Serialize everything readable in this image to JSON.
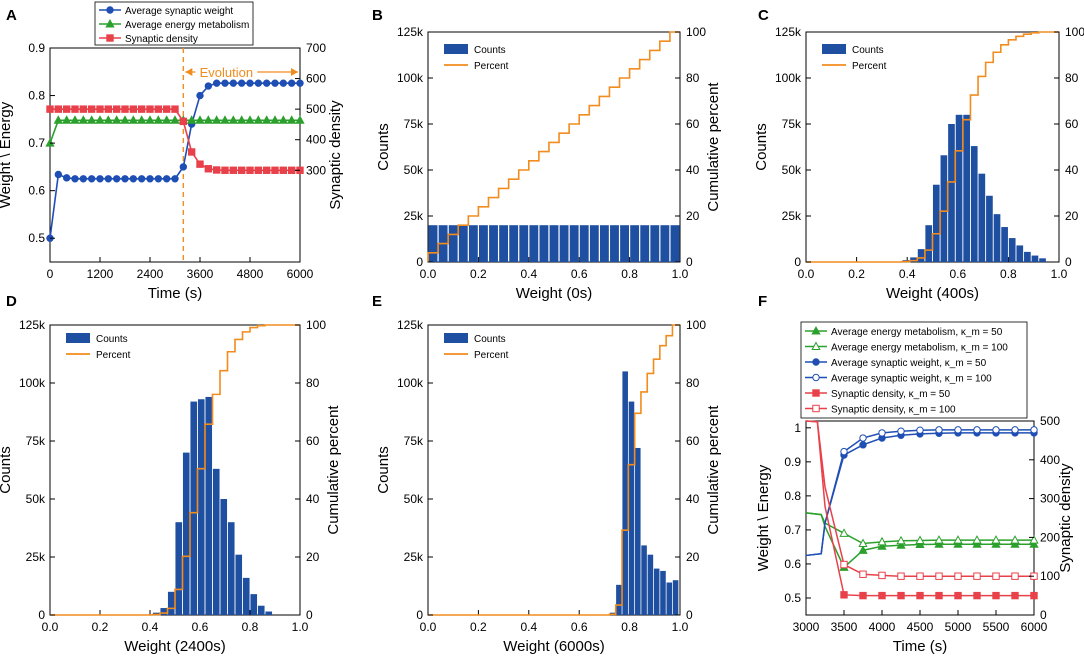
{
  "chart_data": [
    {
      "panel": "A",
      "type": "line",
      "xlabel": "Time (s)",
      "ylabel": "Weight \\ Energy",
      "ylabel_right": "Synaptic density",
      "xlim": [
        0,
        6000
      ],
      "ylim": [
        0.45,
        0.9
      ],
      "ylim_right": [
        0,
        700
      ],
      "x_ticks": [
        0,
        1200,
        2400,
        3600,
        4800,
        6000
      ],
      "y_ticks": [
        0.5,
        0.6,
        0.7,
        0.8,
        0.9
      ],
      "y_right_ticks": [
        300,
        400,
        500,
        600,
        700
      ],
      "annotation": "Evolution",
      "evolution_start": 3200,
      "series": [
        {
          "name": "Average synaptic weight",
          "color": "#1f4fb4",
          "marker": "circle",
          "axis": "left",
          "x": [
            0,
            200,
            400,
            600,
            800,
            1000,
            1200,
            1400,
            1600,
            1800,
            2000,
            2200,
            2400,
            2600,
            2800,
            3000,
            3200,
            3400,
            3600,
            3800,
            4000,
            4200,
            4400,
            4600,
            4800,
            5000,
            5200,
            5400,
            5600,
            5800,
            6000
          ],
          "y": [
            0.5,
            0.634,
            0.627,
            0.625,
            0.625,
            0.625,
            0.625,
            0.625,
            0.625,
            0.625,
            0.625,
            0.625,
            0.625,
            0.625,
            0.625,
            0.625,
            0.65,
            0.74,
            0.8,
            0.82,
            0.826,
            0.826,
            0.826,
            0.826,
            0.826,
            0.826,
            0.826,
            0.826,
            0.826,
            0.826,
            0.826
          ]
        },
        {
          "name": "Average energy metabolism",
          "color": "#2ca02c",
          "marker": "triangle",
          "axis": "left",
          "x": [
            0,
            200,
            400,
            600,
            800,
            1000,
            1200,
            1400,
            1600,
            1800,
            2000,
            2200,
            2400,
            2600,
            2800,
            3000,
            3200,
            3400,
            3600,
            3800,
            4000,
            4200,
            4400,
            4600,
            4800,
            5000,
            5200,
            5400,
            5600,
            5800,
            6000
          ],
          "y": [
            0.7,
            0.748,
            0.748,
            0.748,
            0.748,
            0.748,
            0.748,
            0.748,
            0.748,
            0.748,
            0.748,
            0.748,
            0.748,
            0.748,
            0.748,
            0.748,
            0.748,
            0.748,
            0.748,
            0.748,
            0.748,
            0.748,
            0.748,
            0.748,
            0.748,
            0.748,
            0.748,
            0.748,
            0.748,
            0.748,
            0.748
          ]
        },
        {
          "name": "Synaptic density",
          "color": "#e8414a",
          "marker": "square",
          "axis": "right",
          "x": [
            0,
            200,
            400,
            600,
            800,
            1000,
            1200,
            1400,
            1600,
            1800,
            2000,
            2200,
            2400,
            2600,
            2800,
            3000,
            3200,
            3400,
            3600,
            3800,
            4000,
            4200,
            4400,
            4600,
            4800,
            5000,
            5200,
            5400,
            5600,
            5800,
            6000
          ],
          "y": [
            500,
            500,
            500,
            500,
            500,
            500,
            500,
            500,
            500,
            500,
            500,
            500,
            500,
            500,
            500,
            500,
            460,
            360,
            320,
            305,
            301,
            300,
            300,
            300,
            300,
            300,
            300,
            300,
            300,
            300,
            300
          ]
        }
      ]
    },
    {
      "panel": "B",
      "type": "bar",
      "xlabel": "Weight (0s)",
      "ylabel": "Counts",
      "ylabel_right": "Cumulative percent",
      "xlim": [
        0,
        1.0
      ],
      "ylim": [
        0,
        125000
      ],
      "ylim_right": [
        0,
        100
      ],
      "x_ticks": [
        "0.0",
        "0.2",
        "0.4",
        "0.6",
        "0.8",
        "1.0"
      ],
      "y_ticks": [
        "0",
        "25k",
        "50k",
        "75k",
        "100k",
        "125k"
      ],
      "y_right_ticks": [
        "0",
        "20",
        "40",
        "60",
        "80",
        "100"
      ],
      "legend": [
        "Counts",
        "Percent"
      ],
      "bar_width": 0.04,
      "bins": [
        0.02,
        0.06,
        0.1,
        0.14,
        0.18,
        0.22,
        0.26,
        0.3,
        0.34,
        0.38,
        0.42,
        0.46,
        0.5,
        0.54,
        0.58,
        0.62,
        0.66,
        0.7,
        0.74,
        0.78,
        0.82,
        0.86,
        0.9,
        0.94,
        0.98
      ],
      "counts": [
        20000,
        20000,
        20000,
        20000,
        20000,
        20000,
        20000,
        20000,
        20000,
        20000,
        20000,
        20000,
        20000,
        20000,
        20000,
        20000,
        20000,
        20000,
        20000,
        20000,
        20000,
        20000,
        20000,
        20000,
        20000
      ]
    },
    {
      "panel": "C",
      "type": "bar",
      "xlabel": "Weight (400s)",
      "ylabel": "Counts",
      "ylabel_right": "Cumulative percent",
      "xlim": [
        0,
        1.0
      ],
      "ylim": [
        0,
        125000
      ],
      "ylim_right": [
        0,
        100
      ],
      "x_ticks": [
        "0.0",
        "0.2",
        "0.4",
        "0.6",
        "0.8",
        "1.0"
      ],
      "y_ticks": [
        "0",
        "25k",
        "50k",
        "75k",
        "100k",
        "125k"
      ],
      "y_right_ticks": [
        "0",
        "20",
        "40",
        "60",
        "80",
        "100"
      ],
      "legend": [
        "Counts",
        "Percent"
      ],
      "bar_width": 0.03,
      "bins": [
        0.395,
        0.425,
        0.455,
        0.485,
        0.515,
        0.545,
        0.575,
        0.605,
        0.635,
        0.665,
        0.695,
        0.725,
        0.755,
        0.785,
        0.815,
        0.845,
        0.875,
        0.905,
        0.935
      ],
      "counts": [
        1000,
        2500,
        7000,
        20000,
        42000,
        58000,
        75000,
        80000,
        80000,
        63000,
        48000,
        36000,
        26000,
        19000,
        13000,
        9000,
        5500,
        3500,
        2000
      ]
    },
    {
      "panel": "D",
      "type": "bar",
      "xlabel": "Weight (2400s)",
      "ylabel": "Counts",
      "ylabel_right": "Cumulative percent",
      "xlim": [
        0,
        1.0
      ],
      "ylim": [
        0,
        125000
      ],
      "ylim_right": [
        0,
        100
      ],
      "x_ticks": [
        "0.0",
        "0.2",
        "0.4",
        "0.6",
        "0.8",
        "1.0"
      ],
      "y_ticks": [
        "0",
        "25k",
        "50k",
        "75k",
        "100k",
        "125k"
      ],
      "y_right_ticks": [
        "0",
        "20",
        "40",
        "60",
        "80",
        "100"
      ],
      "legend": [
        "Counts",
        "Percent"
      ],
      "bar_width": 0.03,
      "bins": [
        0.425,
        0.455,
        0.485,
        0.515,
        0.545,
        0.575,
        0.605,
        0.635,
        0.665,
        0.695,
        0.725,
        0.755,
        0.785,
        0.815,
        0.845,
        0.875
      ],
      "counts": [
        1000,
        3000,
        10000,
        40000,
        70000,
        92000,
        93000,
        94000,
        63000,
        50000,
        40000,
        26000,
        16000,
        9000,
        4000,
        1500
      ]
    },
    {
      "panel": "E",
      "type": "bar",
      "xlabel": "Weight (6000s)",
      "ylabel": "Counts",
      "ylabel_right": "Cumulative percent",
      "xlim": [
        0,
        1.0
      ],
      "ylim": [
        0,
        125000
      ],
      "ylim_right": [
        0,
        100
      ],
      "x_ticks": [
        "0.0",
        "0.2",
        "0.4",
        "0.6",
        "0.8",
        "1.0"
      ],
      "y_ticks": [
        "0",
        "25k",
        "50k",
        "75k",
        "100k",
        "125k"
      ],
      "y_right_ticks": [
        "0",
        "20",
        "40",
        "60",
        "80",
        "100"
      ],
      "legend": [
        "Counts",
        "Percent"
      ],
      "bar_width": 0.025,
      "bins": [
        0.7325,
        0.7575,
        0.7825,
        0.8075,
        0.8325,
        0.8575,
        0.8825,
        0.9075,
        0.9325,
        0.9575,
        0.9825
      ],
      "counts": [
        1000,
        13000,
        105000,
        92000,
        72000,
        30000,
        26000,
        20000,
        19000,
        14000,
        15000
      ]
    },
    {
      "panel": "F",
      "type": "line",
      "xlabel": "Time (s)",
      "ylabel": "Weight \\ Energy",
      "ylabel_right": "Synaptic density",
      "xlim": [
        3000,
        6000
      ],
      "ylim": [
        0.45,
        1.02
      ],
      "ylim_right": [
        0,
        500
      ],
      "x_ticks": [
        3000,
        3500,
        4000,
        4500,
        5000,
        5500,
        6000
      ],
      "y_ticks": [
        0.5,
        0.6,
        0.7,
        0.8,
        0.9,
        1.0
      ],
      "y_right_ticks": [
        0,
        100,
        200,
        300,
        400,
        500
      ],
      "series": [
        {
          "name": "Average energy metabolism, κ_m = 50",
          "color": "#2ca02c",
          "marker": "triangle",
          "filled": true,
          "axis": "left",
          "x": [
            3000,
            3200,
            3250,
            3500,
            3750,
            4000,
            4250,
            4500,
            4750,
            5000,
            5250,
            5500,
            5750,
            6000
          ],
          "y": [
            0.75,
            0.745,
            0.71,
            0.59,
            0.64,
            0.652,
            0.655,
            0.657,
            0.658,
            0.658,
            0.658,
            0.658,
            0.658,
            0.658
          ]
        },
        {
          "name": "Average energy metabolism, κ_m = 100",
          "color": "#2ca02c",
          "marker": "triangle",
          "filled": false,
          "axis": "left",
          "x": [
            3000,
            3200,
            3250,
            3500,
            3750,
            4000,
            4250,
            4500,
            4750,
            5000,
            5250,
            5500,
            5750,
            6000
          ],
          "y": [
            0.75,
            0.745,
            0.72,
            0.69,
            0.66,
            0.665,
            0.668,
            0.669,
            0.67,
            0.67,
            0.67,
            0.67,
            0.67,
            0.67
          ]
        },
        {
          "name": "Average synaptic weight, κ_m = 50",
          "color": "#1f4fb4",
          "marker": "circle",
          "filled": true,
          "axis": "left",
          "x": [
            3000,
            3200,
            3250,
            3500,
            3750,
            4000,
            4250,
            4500,
            4750,
            5000,
            5250,
            5500,
            5750,
            6000
          ],
          "y": [
            0.625,
            0.63,
            0.72,
            0.92,
            0.95,
            0.97,
            0.978,
            0.982,
            0.984,
            0.985,
            0.985,
            0.985,
            0.985,
            0.985
          ]
        },
        {
          "name": "Average synaptic weight, κ_m = 100",
          "color": "#1f4fb4",
          "marker": "circle",
          "filled": false,
          "axis": "left",
          "x": [
            3000,
            3200,
            3250,
            3500,
            3750,
            4000,
            4250,
            4500,
            4750,
            5000,
            5250,
            5500,
            5750,
            6000
          ],
          "y": [
            0.625,
            0.63,
            0.72,
            0.93,
            0.97,
            0.985,
            0.99,
            0.993,
            0.994,
            0.994,
            0.994,
            0.994,
            0.994,
            0.994
          ]
        },
        {
          "name": "Synaptic density, κ_m = 50",
          "color": "#e8414a",
          "marker": "square",
          "filled": true,
          "axis": "right",
          "x": [
            3000,
            3150,
            3250,
            3500,
            3750,
            4000,
            4250,
            4500,
            4750,
            5000,
            5250,
            5500,
            5750,
            6000
          ],
          "y": [
            500,
            498,
            280,
            52,
            50,
            50,
            50,
            50,
            50,
            50,
            50,
            50,
            50,
            50
          ]
        },
        {
          "name": "Synaptic density, κ_m = 100",
          "color": "#e8414a",
          "marker": "square",
          "filled": false,
          "axis": "right",
          "x": [
            3000,
            3150,
            3250,
            3500,
            3750,
            4000,
            4250,
            4500,
            4750,
            5000,
            5250,
            5500,
            5750,
            6000
          ],
          "y": [
            500,
            498,
            330,
            130,
            105,
            102,
            100,
            100,
            100,
            100,
            100,
            100,
            100,
            100
          ]
        }
      ]
    }
  ],
  "labels": {
    "panel_a": "A",
    "panel_b": "B",
    "panel_c": "C",
    "panel_d": "D",
    "panel_e": "E",
    "panel_f": "F",
    "bar_color": "#1f4fa0",
    "line_color": "#f28c1e"
  }
}
